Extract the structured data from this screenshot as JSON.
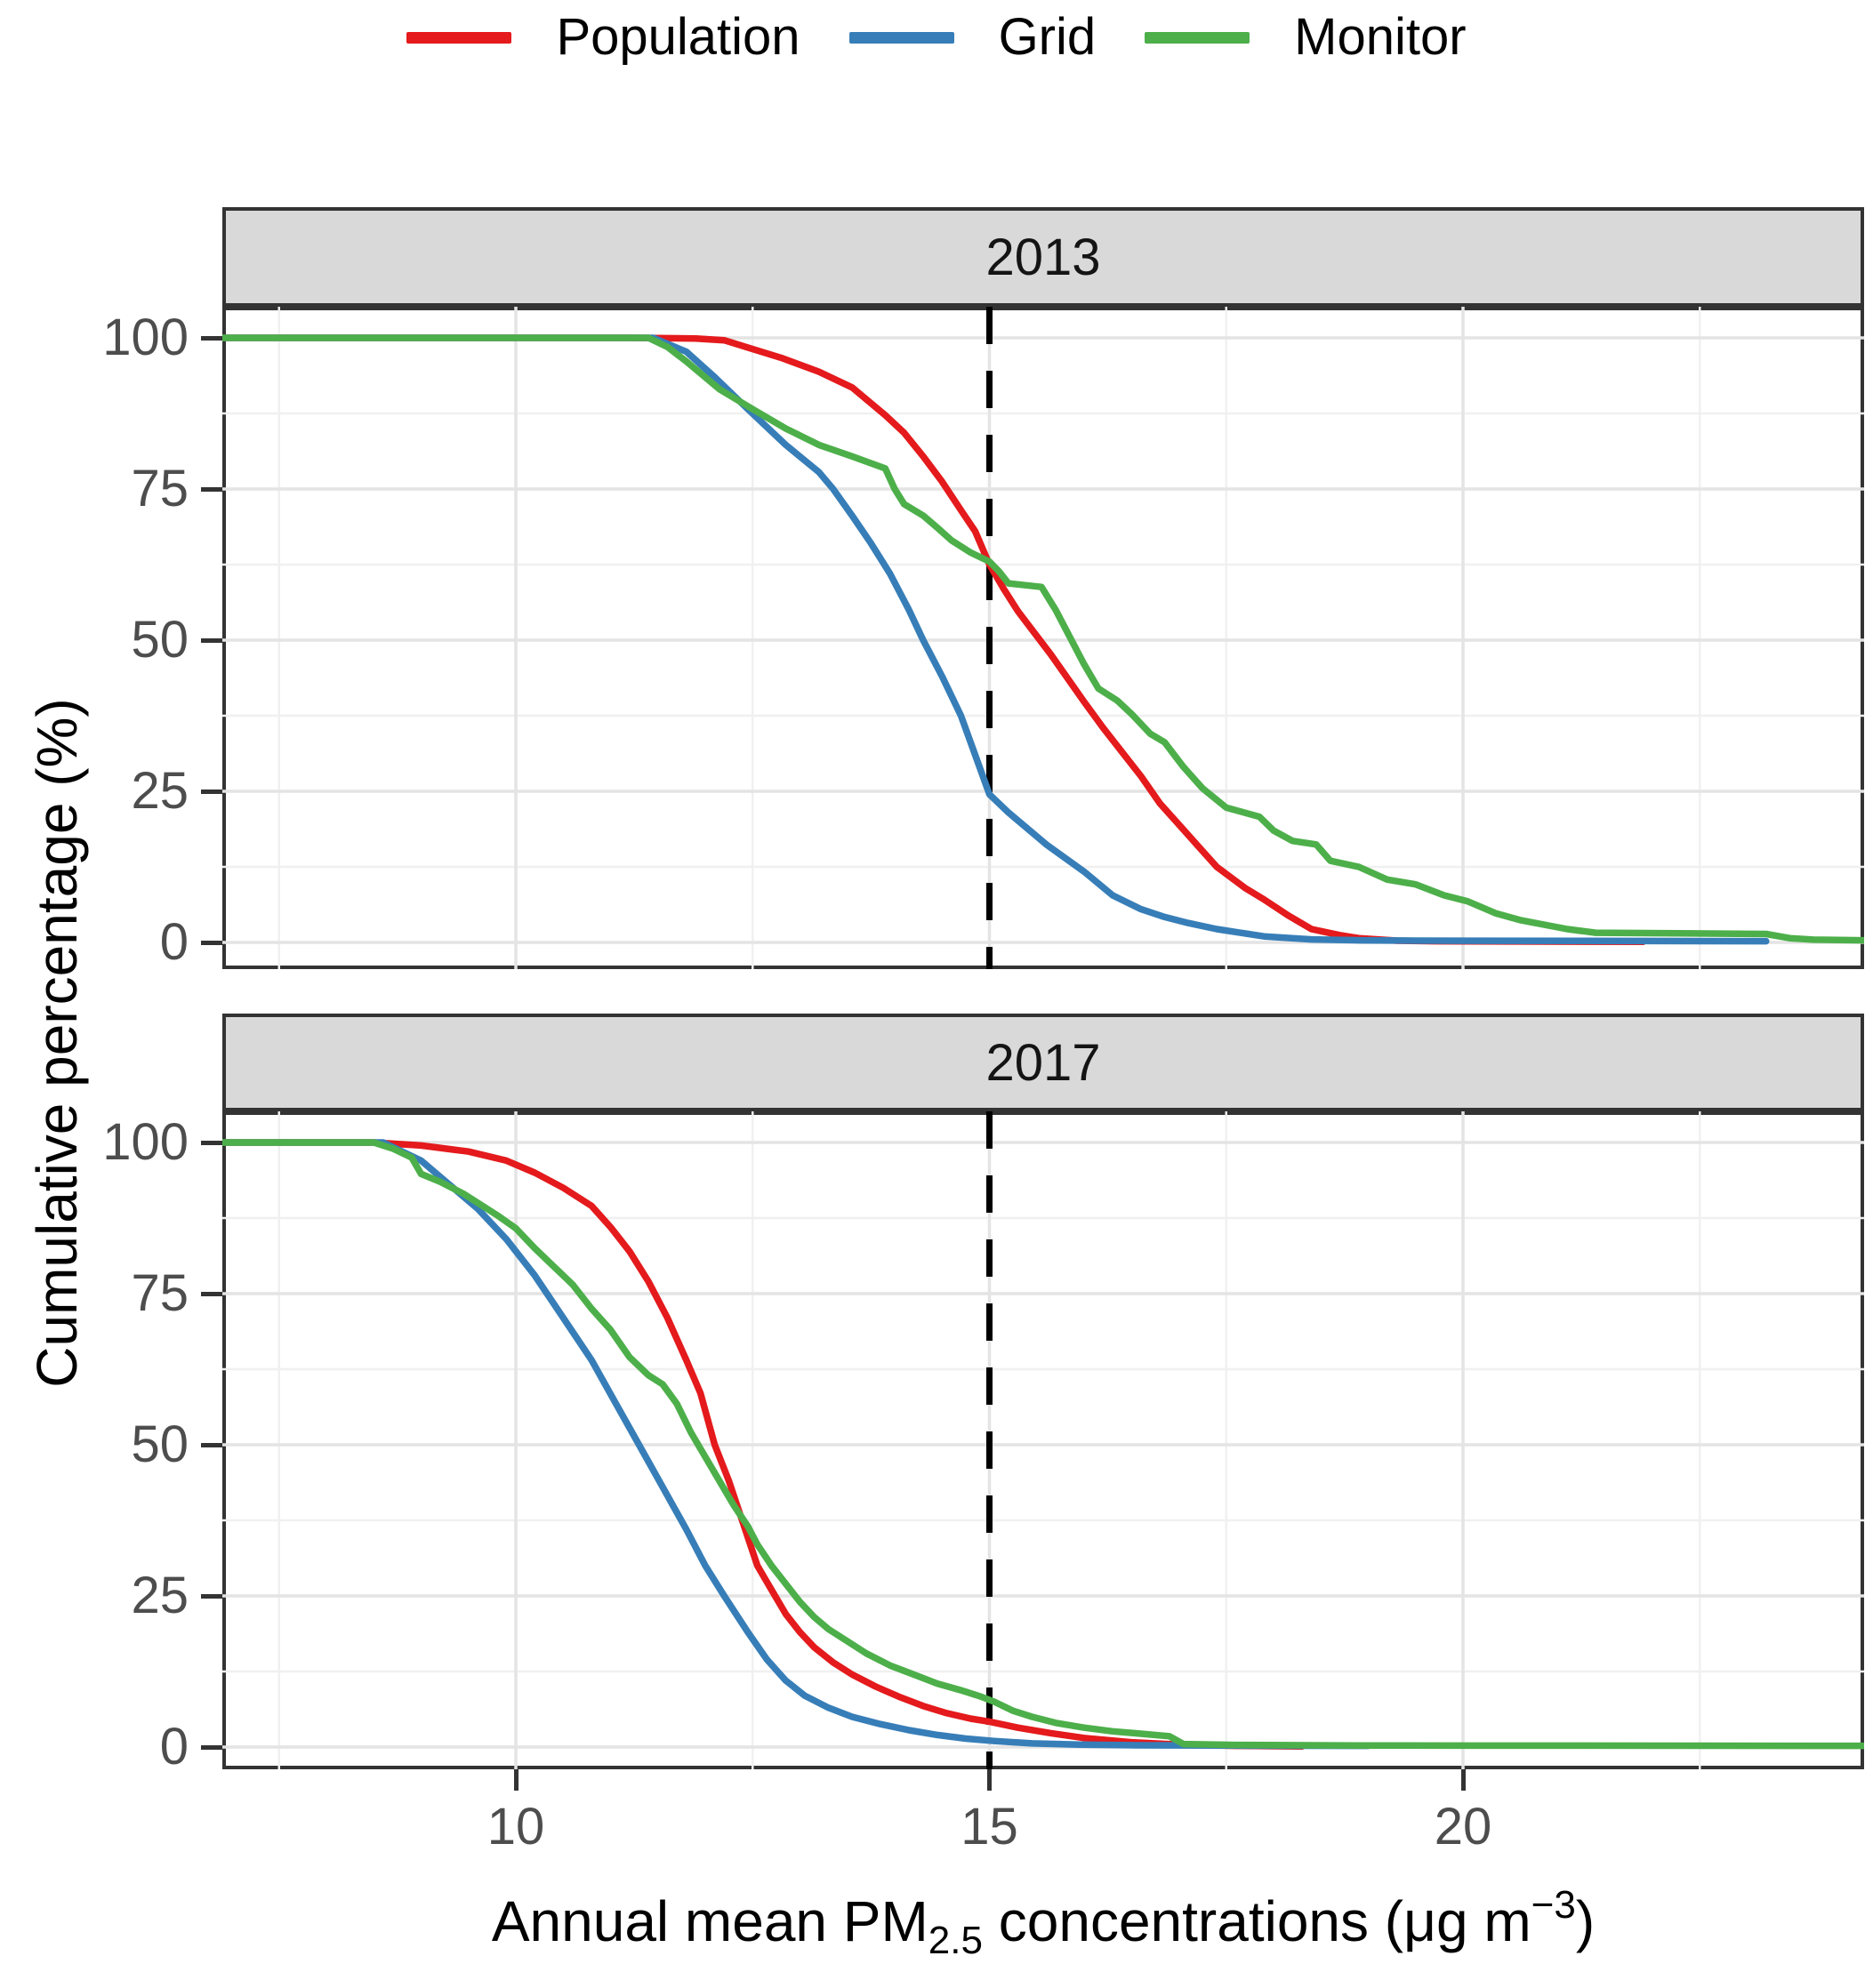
{
  "figure": {
    "kind": "faceted line chart",
    "background": "#ffffff",
    "colors": {
      "population": "#E41A1C",
      "grid": "#377EB8",
      "monitor": "#4DAF4A",
      "strip_bg": "#D9D9D9",
      "panel_border": "#333333",
      "grid_major": "#E4E4E4",
      "grid_minor": "#F0F0F0",
      "axis_text": "#4D4D4D",
      "ref_line": "#000000"
    }
  },
  "legend": {
    "items": [
      {
        "name": "population",
        "label": "Population",
        "color": "#E41A1C"
      },
      {
        "name": "grid",
        "label": "Grid",
        "color": "#377EB8"
      },
      {
        "name": "monitor",
        "label": "Monitor",
        "color": "#4DAF4A"
      }
    ]
  },
  "y_axis": {
    "title": "Cumulative percentage (%)",
    "ticks": [
      0,
      25,
      50,
      75,
      100
    ],
    "minor_ticks": [
      12.5,
      37.5,
      62.5,
      87.5
    ]
  },
  "x_axis": {
    "ticks": [
      10,
      15,
      20
    ],
    "minor_ticks": [
      7.5,
      12.5,
      17.5,
      22.5
    ],
    "range": [
      6.9,
      24.24
    ],
    "title_parts": {
      "prefix": "Annual mean PM",
      "subscript": "2.5",
      "middle": " concentrations (μg m",
      "superscript": "−3",
      "suffix": ")"
    }
  },
  "chart_data": [
    {
      "facet": "2013",
      "type": "line",
      "xlabel": "Annual mean PM2.5 concentrations (ug m-3)",
      "ylabel": "Cumulative percentage (%)",
      "xlim": [
        6.9,
        24.24
      ],
      "ylim": [
        0,
        100
      ],
      "ref_line_x": 15,
      "grid": true,
      "legend_position": "top",
      "series": [
        {
          "name": "Population",
          "color": "#E41A1C",
          "points": [
            [
              6.9,
              100
            ],
            [
              11.2,
              100
            ],
            [
              11.9,
              99.9
            ],
            [
              12.2,
              99.6
            ],
            [
              12.45,
              98.4
            ],
            [
              12.8,
              96.7
            ],
            [
              13.2,
              94.4
            ],
            [
              13.55,
              91.8
            ],
            [
              13.9,
              87.2
            ],
            [
              14.1,
              84.3
            ],
            [
              14.3,
              80.4
            ],
            [
              14.5,
              76.2
            ],
            [
              14.7,
              71.5
            ],
            [
              14.85,
              68
            ],
            [
              15.0,
              62.5
            ],
            [
              15.15,
              58.5
            ],
            [
              15.3,
              54.8
            ],
            [
              15.65,
              47.6
            ],
            [
              16.0,
              39.8
            ],
            [
              16.2,
              35.5
            ],
            [
              16.4,
              31.5
            ],
            [
              16.6,
              27.5
            ],
            [
              16.8,
              23
            ],
            [
              17.0,
              19.5
            ],
            [
              17.2,
              16
            ],
            [
              17.4,
              12.5
            ],
            [
              17.7,
              9
            ],
            [
              17.9,
              7.1
            ],
            [
              18.15,
              4.5
            ],
            [
              18.4,
              2.2
            ],
            [
              18.7,
              1.2
            ],
            [
              18.9,
              0.7
            ],
            [
              19.3,
              0.3
            ],
            [
              19.7,
              0.2
            ],
            [
              21.9,
              0.1
            ]
          ]
        },
        {
          "name": "Grid",
          "color": "#377EB8",
          "points": [
            [
              6.9,
              100
            ],
            [
              11.45,
              100
            ],
            [
              11.8,
              97.7
            ],
            [
              12.1,
              93.5
            ],
            [
              12.45,
              88.2
            ],
            [
              12.85,
              82.3
            ],
            [
              13.2,
              77.8
            ],
            [
              13.35,
              75
            ],
            [
              13.55,
              70.6
            ],
            [
              13.75,
              66
            ],
            [
              13.95,
              61
            ],
            [
              14.15,
              55
            ],
            [
              14.3,
              50
            ],
            [
              14.5,
              44
            ],
            [
              14.7,
              37.5
            ],
            [
              14.85,
              31
            ],
            [
              15.0,
              24.5
            ],
            [
              15.2,
              21.5
            ],
            [
              15.6,
              16.2
            ],
            [
              16.0,
              11.7
            ],
            [
              16.3,
              7.8
            ],
            [
              16.6,
              5.5
            ],
            [
              16.85,
              4.2
            ],
            [
              17.1,
              3.2
            ],
            [
              17.4,
              2.2
            ],
            [
              17.9,
              1.0
            ],
            [
              18.4,
              0.5
            ],
            [
              18.9,
              0.35
            ],
            [
              19.5,
              0.3
            ],
            [
              23.2,
              0.2
            ]
          ]
        },
        {
          "name": "Monitor",
          "color": "#4DAF4A",
          "points": [
            [
              6.9,
              100
            ],
            [
              11.4,
              100
            ],
            [
              11.6,
              98.5
            ],
            [
              11.8,
              96.1
            ],
            [
              12.15,
              91.5
            ],
            [
              12.5,
              88.2
            ],
            [
              12.85,
              85.0
            ],
            [
              13.2,
              82.3
            ],
            [
              13.55,
              80.4
            ],
            [
              13.9,
              78.4
            ],
            [
              14.0,
              75
            ],
            [
              14.1,
              72.5
            ],
            [
              14.3,
              70.6
            ],
            [
              14.45,
              68.6
            ],
            [
              14.6,
              66.5
            ],
            [
              14.8,
              64.5
            ],
            [
              15.0,
              63
            ],
            [
              15.1,
              61.4
            ],
            [
              15.2,
              59.4
            ],
            [
              15.55,
              58.8
            ],
            [
              15.7,
              55
            ],
            [
              15.85,
              50.5
            ],
            [
              16.0,
              46
            ],
            [
              16.15,
              42
            ],
            [
              16.35,
              40
            ],
            [
              16.5,
              37.8
            ],
            [
              16.7,
              34.5
            ],
            [
              16.85,
              33.1
            ],
            [
              17.05,
              29
            ],
            [
              17.25,
              25.5
            ],
            [
              17.5,
              22.3
            ],
            [
              17.85,
              20.8
            ],
            [
              18.0,
              18.5
            ],
            [
              18.2,
              16.8
            ],
            [
              18.45,
              16.2
            ],
            [
              18.6,
              13.5
            ],
            [
              18.9,
              12.5
            ],
            [
              19.2,
              10.4
            ],
            [
              19.5,
              9.6
            ],
            [
              19.8,
              7.8
            ],
            [
              20.05,
              6.8
            ],
            [
              20.35,
              4.8
            ],
            [
              20.6,
              3.7
            ],
            [
              21.1,
              2.2
            ],
            [
              21.4,
              1.6
            ],
            [
              23.2,
              1.4
            ],
            [
              23.45,
              0.7
            ],
            [
              23.7,
              0.45
            ],
            [
              24.24,
              0.35
            ]
          ]
        }
      ]
    },
    {
      "facet": "2017",
      "type": "line",
      "xlabel": "Annual mean PM2.5 concentrations (ug m-3)",
      "ylabel": "Cumulative percentage (%)",
      "xlim": [
        6.9,
        24.24
      ],
      "ylim": [
        0,
        100
      ],
      "ref_line_x": 15,
      "grid": true,
      "legend_position": "top",
      "series": [
        {
          "name": "Population",
          "color": "#E41A1C",
          "points": [
            [
              6.9,
              100
            ],
            [
              8.5,
              100
            ],
            [
              9.0,
              99.5
            ],
            [
              9.5,
              98.5
            ],
            [
              9.9,
              97
            ],
            [
              10.2,
              95
            ],
            [
              10.5,
              92.5
            ],
            [
              10.8,
              89.5
            ],
            [
              11.0,
              86
            ],
            [
              11.2,
              82
            ],
            [
              11.4,
              77
            ],
            [
              11.6,
              71
            ],
            [
              11.8,
              64
            ],
            [
              11.95,
              58.5
            ],
            [
              12.1,
              50
            ],
            [
              12.25,
              44
            ],
            [
              12.4,
              37
            ],
            [
              12.55,
              30
            ],
            [
              12.7,
              26
            ],
            [
              12.85,
              22
            ],
            [
              13.0,
              19
            ],
            [
              13.15,
              16.5
            ],
            [
              13.35,
              14
            ],
            [
              13.55,
              12
            ],
            [
              13.8,
              10
            ],
            [
              14.05,
              8.3
            ],
            [
              14.3,
              6.8
            ],
            [
              14.55,
              5.6
            ],
            [
              14.8,
              4.7
            ],
            [
              15.0,
              4.2
            ],
            [
              15.3,
              3.2
            ],
            [
              15.65,
              2.3
            ],
            [
              16.0,
              1.5
            ],
            [
              16.5,
              0.8
            ],
            [
              17.0,
              0.4
            ],
            [
              17.6,
              0.2
            ],
            [
              18.3,
              0.1
            ]
          ]
        },
        {
          "name": "Grid",
          "color": "#377EB8",
          "points": [
            [
              6.9,
              100
            ],
            [
              8.6,
              100
            ],
            [
              9.0,
              97
            ],
            [
              9.3,
              93
            ],
            [
              9.6,
              89
            ],
            [
              9.9,
              84
            ],
            [
              10.2,
              78
            ],
            [
              10.5,
              71
            ],
            [
              10.8,
              64
            ],
            [
              11.05,
              57
            ],
            [
              11.3,
              50
            ],
            [
              11.55,
              43
            ],
            [
              11.8,
              36
            ],
            [
              12.0,
              30
            ],
            [
              12.2,
              25
            ],
            [
              12.45,
              19
            ],
            [
              12.65,
              14.5
            ],
            [
              12.85,
              11
            ],
            [
              13.05,
              8.5
            ],
            [
              13.3,
              6.5
            ],
            [
              13.55,
              5
            ],
            [
              13.85,
              3.8
            ],
            [
              14.15,
              2.8
            ],
            [
              14.45,
              2
            ],
            [
              14.75,
              1.4
            ],
            [
              15.05,
              1
            ],
            [
              15.45,
              0.6
            ],
            [
              15.95,
              0.4
            ],
            [
              16.55,
              0.3
            ],
            [
              17.5,
              0.25
            ],
            [
              19.0,
              0.2
            ]
          ]
        },
        {
          "name": "Monitor",
          "color": "#4DAF4A",
          "points": [
            [
              6.9,
              100
            ],
            [
              8.5,
              100
            ],
            [
              8.7,
              99
            ],
            [
              8.9,
              97.5
            ],
            [
              9.0,
              94.8
            ],
            [
              9.2,
              93.5
            ],
            [
              9.45,
              91.5
            ],
            [
              9.6,
              90
            ],
            [
              9.8,
              88
            ],
            [
              10.0,
              85.8
            ],
            [
              10.2,
              82.5
            ],
            [
              10.4,
              79.5
            ],
            [
              10.6,
              76.5
            ],
            [
              10.8,
              72.5
            ],
            [
              11.0,
              69
            ],
            [
              11.2,
              64.5
            ],
            [
              11.4,
              61.5
            ],
            [
              11.55,
              60
            ],
            [
              11.7,
              56.8
            ],
            [
              11.85,
              52
            ],
            [
              12.0,
              48
            ],
            [
              12.15,
              44
            ],
            [
              12.3,
              40
            ],
            [
              12.45,
              36.5
            ],
            [
              12.55,
              33.5
            ],
            [
              12.7,
              30
            ],
            [
              12.85,
              27
            ],
            [
              13.0,
              24
            ],
            [
              13.15,
              21.5
            ],
            [
              13.3,
              19.5
            ],
            [
              13.5,
              17.5
            ],
            [
              13.7,
              15.5
            ],
            [
              13.95,
              13.5
            ],
            [
              14.2,
              12
            ],
            [
              14.45,
              10.5
            ],
            [
              14.7,
              9.4
            ],
            [
              14.9,
              8.4
            ],
            [
              15.05,
              7.5
            ],
            [
              15.25,
              6
            ],
            [
              15.45,
              5
            ],
            [
              15.7,
              4
            ],
            [
              16.0,
              3.2
            ],
            [
              16.3,
              2.6
            ],
            [
              16.6,
              2.2
            ],
            [
              16.9,
              1.8
            ],
            [
              17.05,
              0.5
            ],
            [
              17.6,
              0.35
            ],
            [
              19.1,
              0.25
            ],
            [
              24.24,
              0.2
            ]
          ]
        }
      ]
    }
  ]
}
